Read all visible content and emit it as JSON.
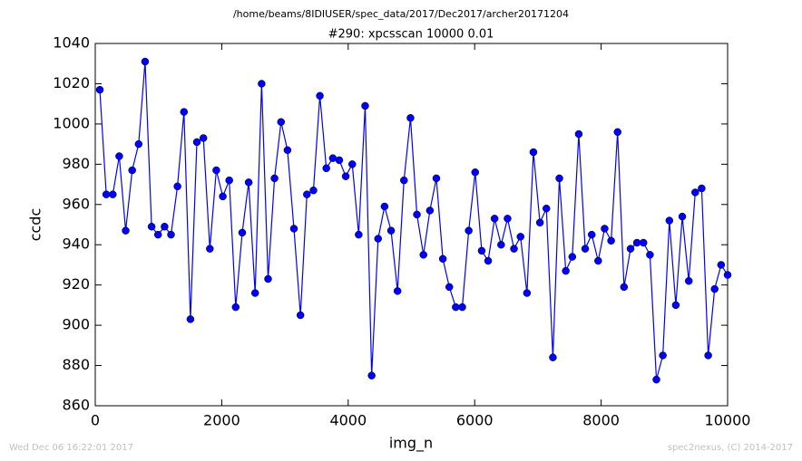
{
  "chart_data": {
    "type": "line",
    "title": "/home/beams/8IDIUSER/spec_data/2017/Dec2017/archer20171204",
    "subtitle": "#290: xpcsscan 10000 0.01",
    "x_label": "img_n",
    "y_label": "ccdc",
    "annotations": [
      "Wed Dec 06 16:22:01 2017",
      "spec2nexus, (C) 2014-2017"
    ],
    "xlim": [
      0,
      10000
    ],
    "xticks": [
      0,
      2000,
      4000,
      6000,
      8000,
      10000
    ],
    "ylim": [
      860,
      1040
    ],
    "yticks": [
      860,
      880,
      900,
      920,
      940,
      960,
      980,
      1000,
      1020,
      1040
    ],
    "grid": false,
    "marker": "circle",
    "x": [
      72,
      174,
      277,
      379,
      481,
      584,
      686,
      788,
      891,
      993,
      1096,
      1198,
      1300,
      1403,
      1505,
      1607,
      1710,
      1812,
      1914,
      2017,
      2119,
      2221,
      2324,
      2426,
      2528,
      2631,
      2733,
      2835,
      2938,
      3040,
      3142,
      3245,
      3347,
      3450,
      3552,
      3654,
      3757,
      3859,
      3961,
      4064,
      4166,
      4268,
      4371,
      4473,
      4575,
      4678,
      4780,
      4882,
      4985,
      5087,
      5190,
      5292,
      5394,
      5497,
      5599,
      5701,
      5804,
      5906,
      6008,
      6111,
      6213,
      6315,
      6418,
      6520,
      6622,
      6725,
      6827,
      6929,
      7032,
      7134,
      7237,
      7339,
      7441,
      7544,
      7646,
      7748,
      7851,
      7953,
      8055,
      8158,
      8260,
      8362,
      8465,
      8567,
      8669,
      8772,
      8874,
      8976,
      9079,
      9181,
      9283,
      9386,
      9488,
      9590,
      9693,
      9795,
      9897,
      10000
    ],
    "series": [
      {
        "name": "ccdc",
        "color": "#0000ff",
        "values": [
          1017,
          965,
          965,
          984,
          947,
          977,
          990,
          1031,
          949,
          945,
          949,
          945,
          969,
          1006,
          903,
          991,
          993,
          938,
          977,
          964,
          972,
          909,
          946,
          971,
          916,
          1020,
          923,
          973,
          1001,
          987,
          948,
          905,
          965,
          967,
          1014,
          978,
          983,
          982,
          974,
          980,
          945,
          1009,
          875,
          943,
          959,
          947,
          917,
          972,
          1003,
          955,
          935,
          957,
          973,
          933,
          919,
          909,
          909,
          947,
          976,
          937,
          932,
          953,
          940,
          953,
          938,
          944,
          916,
          986,
          951,
          958,
          884,
          973,
          927,
          934,
          995,
          938,
          945,
          932,
          948,
          942,
          996,
          919,
          938,
          941,
          941,
          935,
          873,
          885,
          952,
          910,
          954,
          922,
          966,
          968,
          885,
          918,
          930,
          925
        ]
      }
    ]
  }
}
